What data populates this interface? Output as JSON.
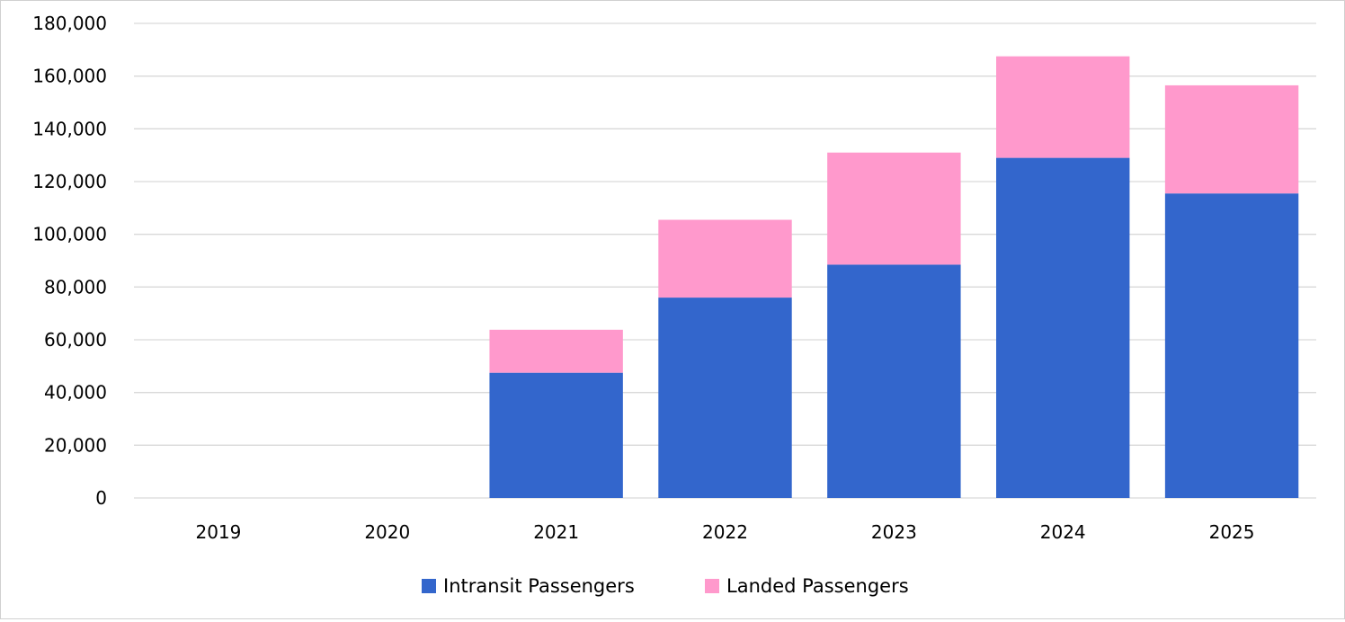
{
  "chart_data": {
    "type": "bar",
    "stacked": true,
    "categories": [
      "2019",
      "2020",
      "2021",
      "2022",
      "2023",
      "2024",
      "2025"
    ],
    "series": [
      {
        "name": "Intransit Passengers",
        "color": "#3366cc",
        "values": [
          0,
          0,
          47500,
          76000,
          88500,
          129000,
          115500
        ]
      },
      {
        "name": "Landed Passengers",
        "color": "#ff99cc",
        "values": [
          0,
          0,
          16300,
          29500,
          42500,
          38500,
          41000
        ]
      }
    ],
    "ylim": [
      0,
      180000
    ],
    "yticks": [
      0,
      20000,
      40000,
      60000,
      80000,
      100000,
      120000,
      140000,
      160000,
      180000
    ],
    "ytick_labels": [
      "0",
      "20,000",
      "40,000",
      "60,000",
      "80,000",
      "100,000",
      "120,000",
      "140,000",
      "160,000",
      "180,000"
    ],
    "grid": true,
    "legend_position": "bottom"
  }
}
